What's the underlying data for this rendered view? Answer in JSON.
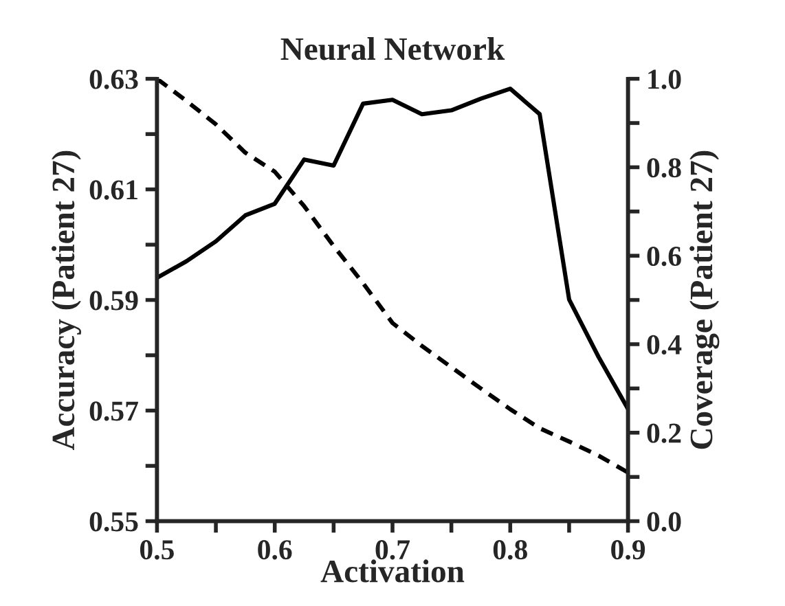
{
  "chart_data": {
    "type": "line",
    "title": "Neural Network",
    "xlabel": "Activation",
    "ylabel": "Accuracy (Patient 27)",
    "y2label": "Coverage (Patient 27)",
    "x": [
      0.5,
      0.525,
      0.55,
      0.575,
      0.6,
      0.625,
      0.65,
      0.675,
      0.7,
      0.725,
      0.75,
      0.775,
      0.8,
      0.825,
      0.85,
      0.875,
      0.9
    ],
    "series": [
      {
        "color": "#000000",
        "line_style": "solid",
        "values": [
          0.594,
          0.597,
          0.6006,
          0.6053,
          0.6074,
          0.6154,
          0.6143,
          0.6255,
          0.6262,
          0.6236,
          0.6243,
          0.6264,
          0.6282,
          0.6236,
          0.5901,
          0.5797,
          0.5703
        ]
      },
      {
        "color": "#000000",
        "line_style": "dashed",
        "axis": "y2",
        "values": [
          1.0,
          0.95,
          0.897,
          0.833,
          0.79,
          0.712,
          0.622,
          0.538,
          0.448,
          0.396,
          0.348,
          0.3,
          0.253,
          0.21,
          0.18,
          0.148,
          0.11
        ]
      }
    ],
    "xlim": [
      0.5,
      0.9
    ],
    "xticks": [
      0.5,
      {
        "value": 0.55,
        "label": null
      },
      0.6,
      {
        "value": 0.65,
        "label": null
      },
      0.7,
      {
        "value": 0.75,
        "label": null
      },
      0.8,
      {
        "value": 0.85,
        "label": null
      },
      0.9
    ],
    "ylim": [
      0.55,
      0.63
    ],
    "yticks": [
      0.55,
      {
        "value": 0.56,
        "label": null
      },
      0.57,
      {
        "value": 0.58,
        "label": null
      },
      0.59,
      {
        "value": 0.6,
        "label": null
      },
      0.61,
      {
        "value": 0.62,
        "label": null
      },
      0.63
    ],
    "y2lim": [
      0.0,
      1.0
    ],
    "y2ticks": [
      {
        "value": 0.0,
        "label": "0.0"
      },
      {
        "value": 0.1,
        "label": null
      },
      0.2,
      {
        "value": 0.3,
        "label": null
      },
      0.4,
      {
        "value": 0.5,
        "label": null
      },
      0.6,
      {
        "value": 0.7,
        "label": null
      },
      0.8,
      {
        "value": 0.9,
        "label": null
      },
      {
        "value": 1.0,
        "label": "1.0"
      }
    ],
    "grid": false,
    "legend": false
  }
}
